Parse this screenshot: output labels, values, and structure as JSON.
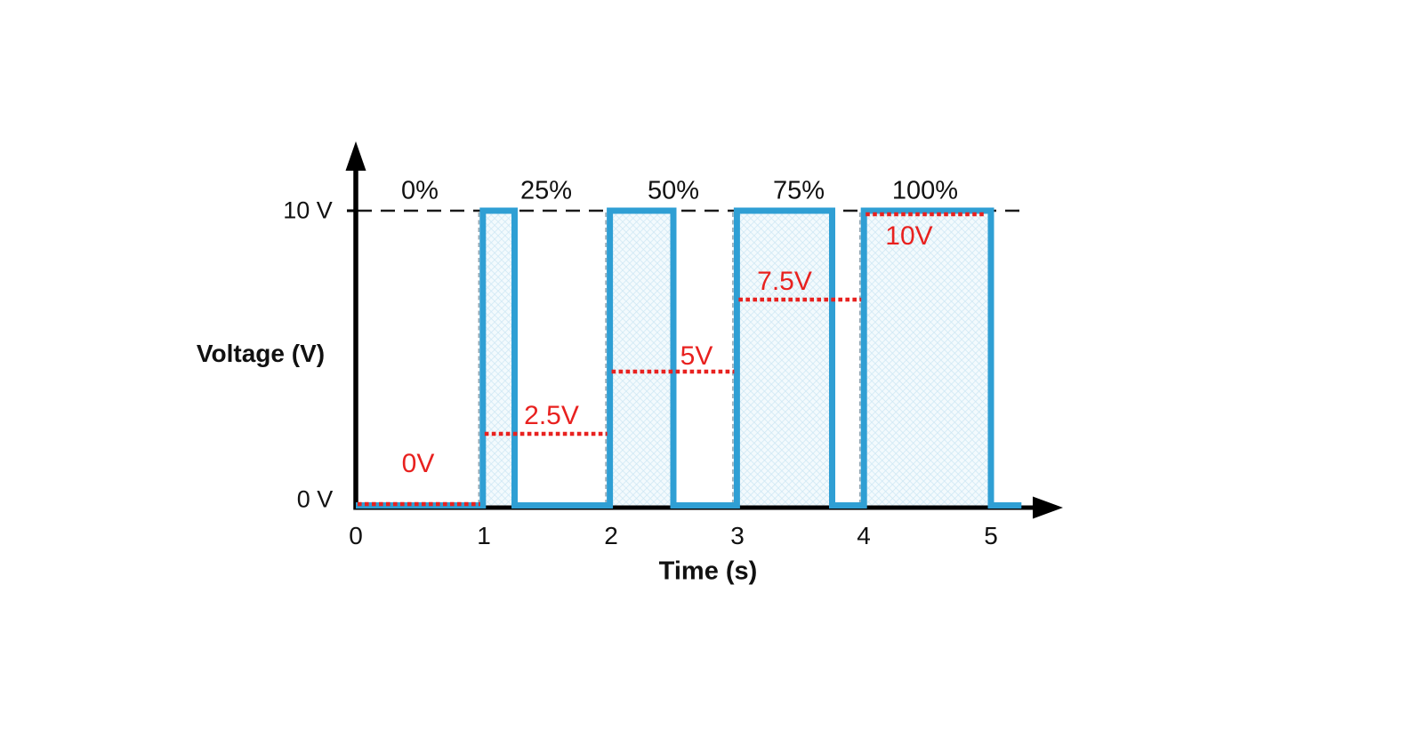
{
  "chart_data": {
    "type": "line",
    "subtype": "pwm-square-wave",
    "title": "",
    "xlabel": "Time (s)",
    "ylabel": "Voltage (V)",
    "x_ticks": [
      "0",
      "1",
      "2",
      "3",
      "4",
      "5"
    ],
    "y_axis_labels": [
      {
        "text": "10 V",
        "value": 10
      },
      {
        "text": "0 V",
        "value": 0
      }
    ],
    "xlim": [
      0,
      5.35
    ],
    "ylim": [
      0,
      10
    ],
    "grid": "off",
    "legend": "none",
    "reference_line": {
      "value": 10,
      "style": "dashed"
    },
    "signal_high_v": 10,
    "signal_low_v": 0,
    "period_s": 1,
    "periods": [
      {
        "t_start": 0,
        "t_end": 1,
        "duty_pct": 0,
        "duty_label": "0%",
        "avg_v": 0,
        "avg_label": "0V",
        "pulse_t": null
      },
      {
        "t_start": 1,
        "t_end": 2,
        "duty_pct": 25,
        "duty_label": "25%",
        "avg_v": 2.5,
        "avg_label": "2.5V",
        "pulse_t": [
          1,
          1.25
        ]
      },
      {
        "t_start": 2,
        "t_end": 3,
        "duty_pct": 50,
        "duty_label": "50%",
        "avg_v": 5,
        "avg_label": "5V",
        "pulse_t": [
          2,
          2.5
        ]
      },
      {
        "t_start": 3,
        "t_end": 4,
        "duty_pct": 75,
        "duty_label": "75%",
        "avg_v": 7.5,
        "avg_label": "7.5V",
        "pulse_t": [
          3,
          3.75
        ]
      },
      {
        "t_start": 4,
        "t_end": 5,
        "duty_pct": 100,
        "duty_label": "100%",
        "avg_v": 10,
        "avg_label": "10V",
        "pulse_t": [
          4,
          5
        ]
      }
    ],
    "waveform_t_v": [
      [
        0,
        0
      ],
      [
        1,
        0
      ],
      [
        1,
        10
      ],
      [
        1.25,
        10
      ],
      [
        1.25,
        0
      ],
      [
        2,
        0
      ],
      [
        2,
        10
      ],
      [
        2.5,
        10
      ],
      [
        2.5,
        0
      ],
      [
        3,
        0
      ],
      [
        3,
        10
      ],
      [
        3.75,
        10
      ],
      [
        3.75,
        0
      ],
      [
        4,
        0
      ],
      [
        4,
        10
      ],
      [
        5,
        10
      ],
      [
        5,
        0
      ],
      [
        5.24,
        0
      ]
    ],
    "colors": {
      "signal_stroke": "#2f9fd4",
      "pulse_fill_tint": "#cde7f4",
      "avg_dotted": "#e8211f",
      "axis": "#000000",
      "reference_dashed": "#1a1a1a"
    }
  }
}
